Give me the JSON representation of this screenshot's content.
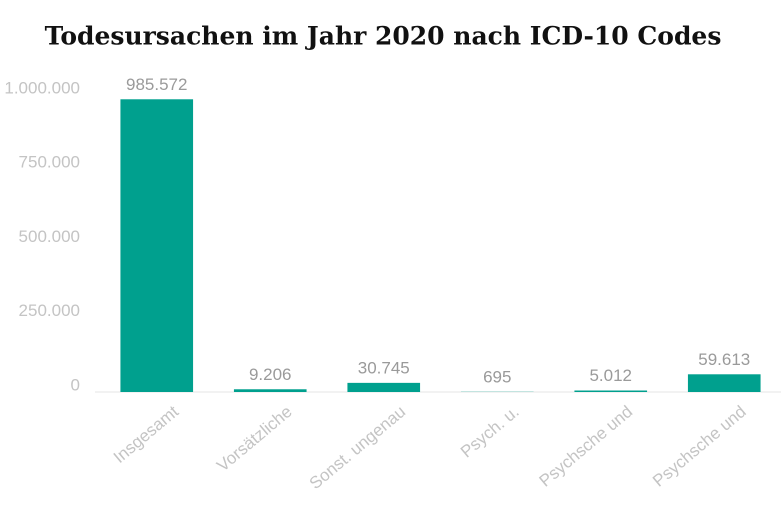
{
  "chart_data": {
    "type": "bar",
    "title": "Todesursachen im Jahr 2020 nach ICD-10 Codes",
    "categories": [
      "Insgesamt",
      "Vorsätzliche",
      "Sonst. ungenau",
      "Psych. u.",
      "Psychsche und",
      "Psychsche und"
    ],
    "values": [
      985572,
      9206,
      30745,
      695,
      5012,
      59613
    ],
    "value_labels": [
      "985.572",
      "9.206",
      "30.745",
      "695",
      "5.012",
      "59.613"
    ],
    "color": "#00a08e",
    "ylim": [
      0,
      1000000
    ],
    "yticks": [
      0,
      {
        "value": 250000,
        "label": "250.000"
      },
      {
        "value": 500000,
        "label": "500.000"
      },
      {
        "value": 750000,
        "label": "750.000"
      },
      {
        "value": 1000000,
        "label": "1.000.000"
      }
    ],
    "grid": false
  }
}
